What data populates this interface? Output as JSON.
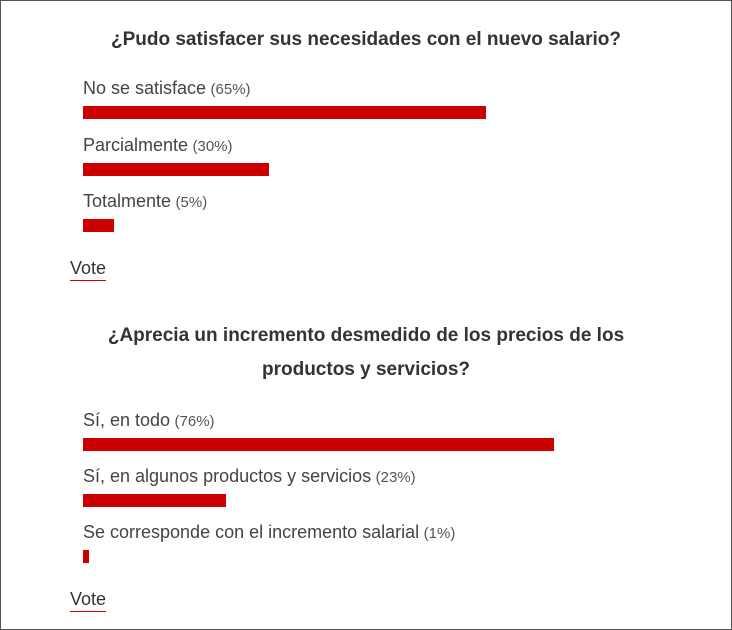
{
  "polls": [
    {
      "question": "¿Pudo satisfacer sus necesidades con el nuevo salario?",
      "options": [
        {
          "label": "No se satisface",
          "percent_text": "(65%)",
          "percent": 65
        },
        {
          "label": "Parcialmente",
          "percent_text": "(30%)",
          "percent": 30
        },
        {
          "label": "Totalmente",
          "percent_text": "(5%)",
          "percent": 5
        }
      ],
      "vote_label": "Vote"
    },
    {
      "question": "¿Aprecia un incremento desmedido de los precios de los productos y servicios?",
      "options": [
        {
          "label": "Sí, en todo",
          "percent_text": "(76%)",
          "percent": 76
        },
        {
          "label": "Sí, en algunos productos y servicios",
          "percent_text": "(23%)",
          "percent": 23
        },
        {
          "label": "Se corresponde con el incremento salarial",
          "percent_text": "(1%)",
          "percent": 1
        }
      ],
      "vote_label": "Vote"
    }
  ],
  "colors": {
    "bar": "#cc0000",
    "text": "#333333",
    "border": "#555555"
  }
}
